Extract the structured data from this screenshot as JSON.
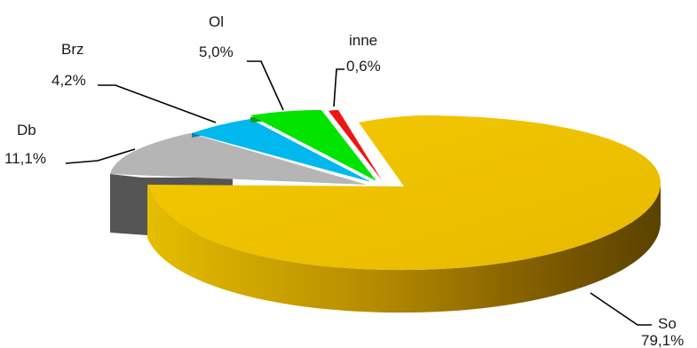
{
  "chart_data": {
    "type": "pie",
    "style": "3d-exploded",
    "title": "",
    "slices": [
      {
        "name": "So",
        "label": "79,1%",
        "value": 79.1,
        "color": "#EFC100"
      },
      {
        "name": "Db",
        "label": "11,1%",
        "value": 11.1,
        "color": "#B5B5B5"
      },
      {
        "name": "Brz",
        "label": "4,2%",
        "value": 4.2,
        "color": "#00B8EE"
      },
      {
        "name": "Ol",
        "label": "5,0%",
        "value": 5.0,
        "color": "#00E400"
      },
      {
        "name": "inne",
        "label": "0,6%",
        "value": 0.6,
        "color": "#EE1515"
      }
    ]
  }
}
